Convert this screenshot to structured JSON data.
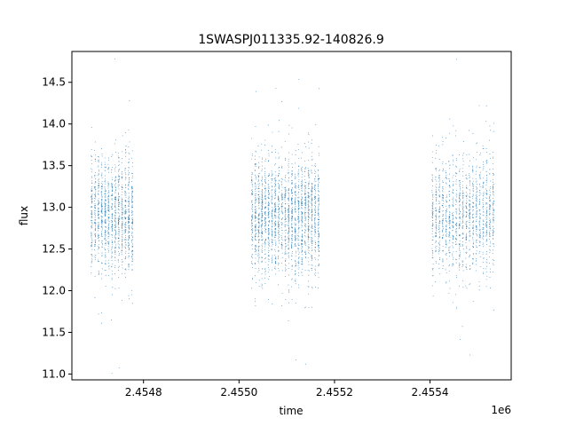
{
  "chart_data": {
    "type": "scatter",
    "title": "1SWASPJ011335.92-140826.9",
    "xlabel": "time",
    "ylabel": "flux",
    "x_offset_label": "1e6",
    "xlim": [
      2454650,
      2455570
    ],
    "ylim": [
      10.93,
      14.87
    ],
    "x_ticks": [
      2454800,
      2455000,
      2455200,
      2455400
    ],
    "x_tick_labels": [
      "2.4548",
      "2.4550",
      "2.4552",
      "2.4554"
    ],
    "y_ticks": [
      11.0,
      11.5,
      12.0,
      12.5,
      13.0,
      13.5,
      14.0,
      14.5
    ],
    "y_tick_labels": [
      "11.0",
      "11.5",
      "12.0",
      "12.5",
      "13.0",
      "13.5",
      "14.0",
      "14.5"
    ],
    "grid": false,
    "marker_color": "#1f77b4",
    "segments": [
      {
        "x_start": 2454688,
        "x_end": 2454780,
        "y_center": 12.9,
        "y_spread": 0.35,
        "density": 1400
      },
      {
        "x_start": 2455024,
        "x_end": 2455170,
        "y_center": 12.9,
        "y_spread": 0.35,
        "density": 2300
      },
      {
        "x_start": 2455402,
        "x_end": 2455536,
        "y_center": 12.9,
        "y_spread": 0.35,
        "density": 1500
      }
    ]
  }
}
